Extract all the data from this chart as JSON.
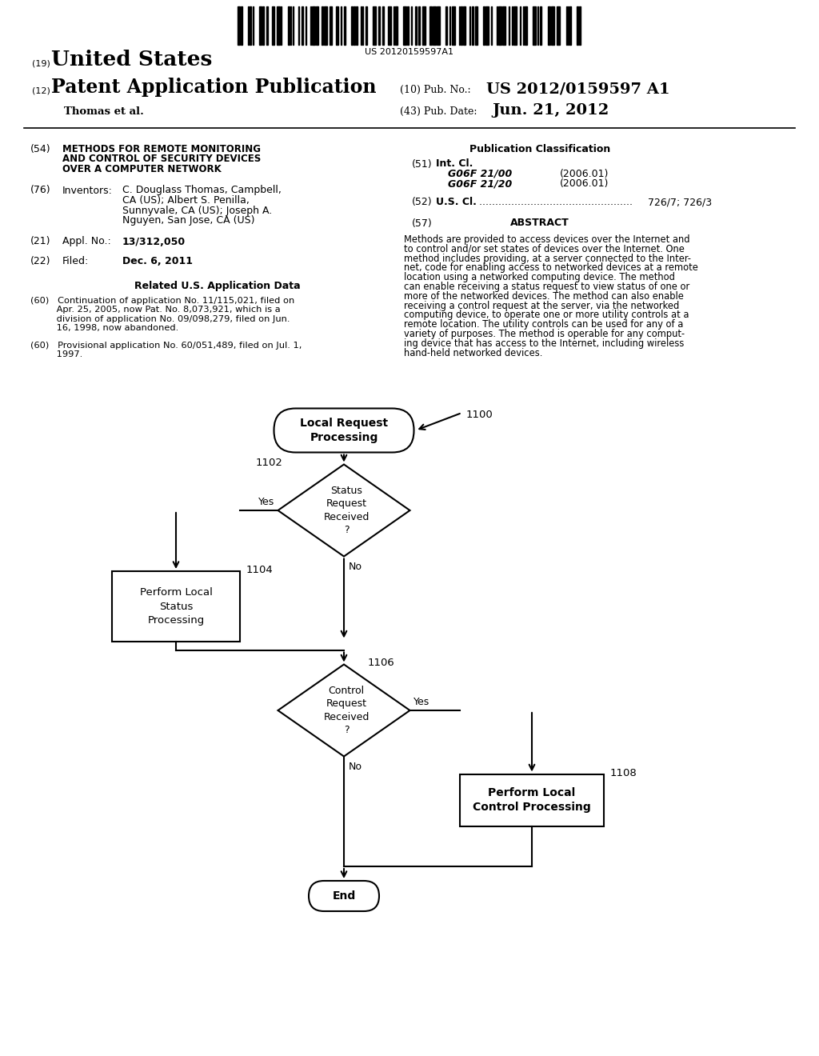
{
  "bg_color": "#ffffff",
  "barcode_text": "US 20120159597A1",
  "header_line1_num": "(19)",
  "header_line1_text": "United States",
  "header_line2_num": "(12)",
  "header_line2_text": "Patent Application Publication",
  "header_pub_num_label": "(10) Pub. No.:",
  "header_pub_num_val": "US 2012/0159597 A1",
  "header_author": "Thomas et al.",
  "header_date_label": "(43) Pub. Date:",
  "header_date_val": "Jun. 21, 2012",
  "left_col": {
    "title_num": "(54)",
    "title_lines": [
      "METHODS FOR REMOTE MONITORING",
      "AND CONTROL OF SECURITY DEVICES",
      "OVER A COMPUTER NETWORK"
    ],
    "inventors_num": "(76)",
    "inventors_label": "Inventors:",
    "inventors_lines": [
      "C. Douglass Thomas, Campbell,",
      "CA (US); Albert S. Penilla,",
      "Sunnyvale, CA (US); Joseph A.",
      "Nguyen, San Jose, CA (US)"
    ],
    "appl_num": "(21)",
    "appl_label": "Appl. No.:",
    "appl_val": "13/312,050",
    "filed_num": "(22)",
    "filed_label": "Filed:",
    "filed_val": "Dec. 6, 2011",
    "related_title": "Related U.S. Application Data",
    "related_60_1_lines": [
      "(60)   Continuation of application No. 11/115,021, filed on",
      "         Apr. 25, 2005, now Pat. No. 8,073,921, which is a",
      "         division of application No. 09/098,279, filed on Jun.",
      "         16, 1998, now abandoned."
    ],
    "related_60_2_lines": [
      "(60)   Provisional application No. 60/051,489, filed on Jul. 1,",
      "         1997."
    ]
  },
  "right_col": {
    "pub_class_title": "Publication Classification",
    "int_cl_num": "(51)",
    "int_cl_label": "Int. Cl.",
    "int_cl_1": "G06F 21/00",
    "int_cl_1_date": "(2006.01)",
    "int_cl_2": "G06F 21/20",
    "int_cl_2_date": "(2006.01)",
    "us_cl_num": "(52)",
    "us_cl_label": "U.S. Cl.",
    "us_cl_dots": " ................................................",
    "us_cl_val": " 726/7; 726/3",
    "abstract_num": "(57)",
    "abstract_title": "ABSTRACT",
    "abstract_lines": [
      "Methods are provided to access devices over the Internet and",
      "to control and/or set states of devices over the Internet. One",
      "method includes providing, at a server connected to the Inter-",
      "net, code for enabling access to networked devices at a remote",
      "location using a networked computing device. The method",
      "can enable receiving a status request to view status of one or",
      "more of the networked devices. The method can also enable",
      "receiving a control request at the server, via the networked",
      "computing device, to operate one or more utility controls at a",
      "remote location. The utility controls can be used for any of a",
      "variety of purposes. The method is operable for any comput-",
      "ing device that has access to the Internet, including wireless",
      "hand-held networked devices."
    ]
  },
  "flowchart": {
    "label_1100": "1100",
    "label_1102": "1102",
    "label_1104": "1104",
    "label_1106": "1106",
    "label_1108": "1108",
    "node_start": "Local Request\nProcessing",
    "node_diamond1_lines": [
      "Status",
      "Request",
      "Received",
      "?"
    ],
    "node_box1_lines": [
      "Perform Local",
      "Status",
      "Processing"
    ],
    "node_diamond2_lines": [
      "Control",
      "Request",
      "Received",
      "?"
    ],
    "node_box2_lines": [
      "Perform Local",
      "Control Processing"
    ],
    "node_end": "End",
    "yes1": "Yes",
    "no1": "No",
    "yes2": "Yes",
    "no2": "No"
  }
}
